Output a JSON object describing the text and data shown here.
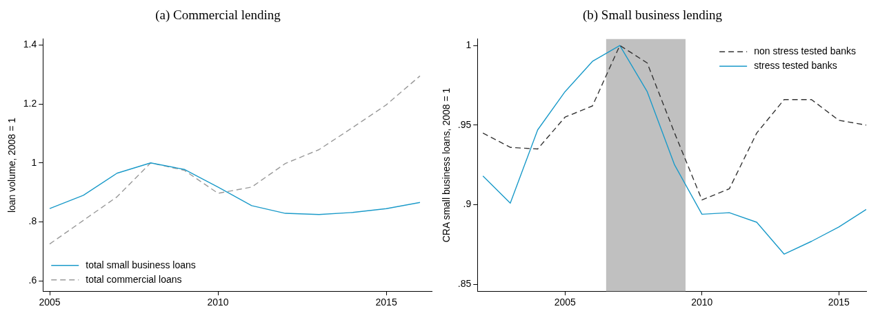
{
  "chart_data": [
    {
      "type": "line",
      "title": "(a) Commercial lending",
      "ylabel": "loan volume, 2008 = 1",
      "x": [
        2005,
        2006,
        2007,
        2008,
        2009,
        2010,
        2011,
        2012,
        2013,
        2014,
        2015,
        2016
      ],
      "series": [
        {
          "name": "total small business loans",
          "color": "#1a9ac9",
          "line_style": "solid",
          "values": [
            0.845,
            0.89,
            0.965,
            1.0,
            0.978,
            0.918,
            0.855,
            0.829,
            0.825,
            0.832,
            0.845,
            0.866
          ]
        },
        {
          "name": "total commercial loans",
          "color": "#999999",
          "line_style": "dashed",
          "values": [
            0.725,
            0.805,
            0.885,
            1.0,
            0.975,
            0.897,
            0.918,
            0.998,
            1.045,
            1.12,
            1.197,
            1.295
          ]
        }
      ],
      "xlim": [
        2004.8,
        2016.35
      ],
      "xticks": [
        2005,
        2010,
        2015
      ],
      "ylim": [
        0.565,
        1.42
      ],
      "yticks": [
        {
          "value": 0.6,
          "label": ".6"
        },
        {
          "value": 0.8,
          "label": ".8"
        },
        1,
        1.2,
        1.4
      ],
      "grid": false,
      "legend": "bottom left",
      "marker": "none"
    },
    {
      "type": "line",
      "title": "(b) Small business lending",
      "ylabel": "CRA small business loans, 2008 = 1",
      "x": [
        2002,
        2003,
        2004,
        2005,
        2006,
        2007,
        2008,
        2009,
        2010,
        2011,
        2012,
        2013,
        2014,
        2015,
        2016
      ],
      "series": [
        {
          "name": "non stress tested banks",
          "color": "#333333",
          "line_style": "dashed",
          "values": [
            0.945,
            0.936,
            0.935,
            0.955,
            0.962,
            1.0,
            0.989,
            0.945,
            0.903,
            0.91,
            0.945,
            0.966,
            0.966,
            0.953,
            0.95
          ]
        },
        {
          "name": "stress tested banks",
          "color": "#1a9ac9",
          "line_style": "solid",
          "values": [
            0.918,
            0.901,
            0.947,
            0.971,
            0.99,
            1.0,
            0.971,
            0.925,
            0.894,
            0.895,
            0.889,
            0.869,
            0.877,
            0.886,
            0.897
          ]
        }
      ],
      "xlim": [
        2001.8,
        2016
      ],
      "xticks": [
        2005,
        2010,
        2015
      ],
      "ylim": [
        0.8457,
        1.004
      ],
      "yticks": [
        {
          "value": 0.85,
          "label": ".85"
        },
        {
          "value": 0.9,
          "label": ".9"
        },
        {
          "value": 0.95,
          "label": ".95"
        },
        1
      ],
      "bands": [
        {
          "axis": "x",
          "from": 2006.5,
          "to": 2009.4,
          "color": "#c0c0c0"
        }
      ],
      "grid": false,
      "legend": "top right",
      "marker": "none"
    }
  ]
}
